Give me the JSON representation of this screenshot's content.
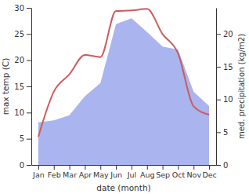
{
  "chart_data": {
    "type": "line",
    "x_label": "date (month)",
    "y_label": "max temp (C)",
    "y2_label": "med. precipitation (kg/m2)",
    "categories": [
      "Jan",
      "Feb",
      "Mar",
      "Apr",
      "May",
      "Jun",
      "Jul",
      "Aug",
      "Sep",
      "Oct",
      "Nov",
      "Dec"
    ],
    "series": [
      {
        "type": "area",
        "axis": "y2",
        "color": "#aab4ee",
        "values": [
          6.5,
          6.8,
          7.6,
          10.5,
          12.5,
          21.5,
          22.4,
          20.3,
          18.1,
          17.6,
          11.2,
          9.0
        ]
      },
      {
        "type": "line",
        "color": "#cd5c5c",
        "values": [
          5.4,
          14.0,
          17.3,
          21.0,
          20.6,
          29.4,
          29.5,
          29.8,
          25.0,
          21.3,
          11.2,
          9.6
        ]
      }
    ],
    "ylim": [
      0,
      30
    ],
    "yticks": [
      0,
      5,
      10,
      15,
      20,
      25,
      30
    ],
    "y2lim": [
      0,
      24
    ],
    "y2ticks": [
      0,
      5,
      10,
      15,
      20
    ],
    "grid": false
  }
}
